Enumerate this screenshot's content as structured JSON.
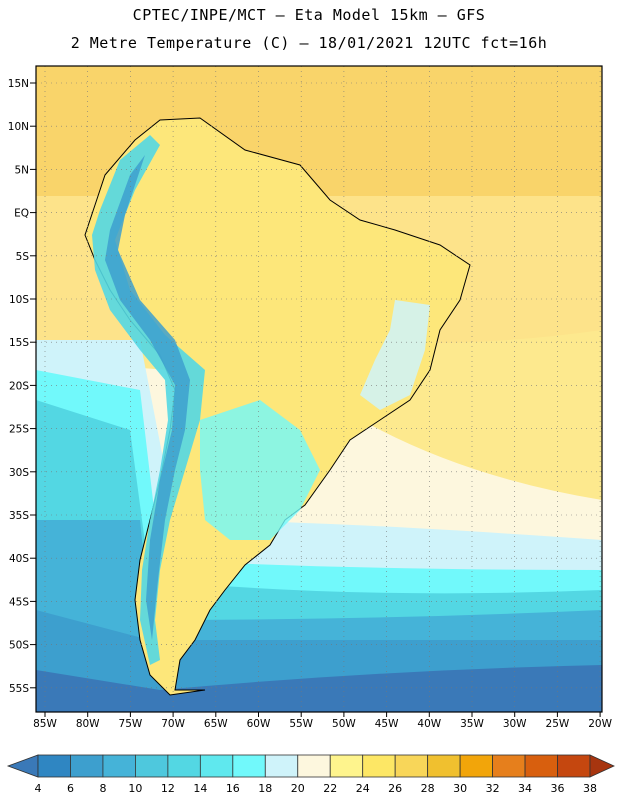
{
  "header": {
    "title_line1": "CPTEC/INPE/MCT –  Eta Model 15km – GFS",
    "title_line2": "2 Metre Temperature (C) – 18/01/2021 12UTC fct=16h"
  },
  "axes": {
    "lat_labels": [
      "15N",
      "10N",
      "5N",
      "EQ",
      "5S",
      "10S",
      "15S",
      "20S",
      "25S",
      "30S",
      "35S",
      "40S",
      "45S",
      "50S",
      "55S"
    ],
    "lon_labels": [
      "85W",
      "80W",
      "75W",
      "70W",
      "65W",
      "60W",
      "55W",
      "50W",
      "45W",
      "40W",
      "35W",
      "30W",
      "25W",
      "20W"
    ]
  },
  "colorbar": {
    "labels": [
      "4",
      "6",
      "8",
      "10",
      "12",
      "14",
      "16",
      "18",
      "20",
      "22",
      "24",
      "26",
      "28",
      "30",
      "32",
      "34",
      "36",
      "38"
    ],
    "colors": [
      "#3a79b8",
      "#2f86c2",
      "#3d9fce",
      "#45b3d8",
      "#4ec8dd",
      "#53d7e3",
      "#5fe8ee",
      "#71f9fb",
      "#cff3fa",
      "#fdf7de",
      "#fef48d",
      "#fde765",
      "#f8d659",
      "#f0c02f",
      "#f2a50a",
      "#e67f1c",
      "#d85f0e",
      "#c5470f",
      "#a7350f"
    ]
  },
  "colors": {
    "ocean_warm": "#fbe89a",
    "ocean_mid": "#fdf7de",
    "ocean_cool": "#cff3fa",
    "land": "#fde97a",
    "andes": "#53d7e3"
  }
}
